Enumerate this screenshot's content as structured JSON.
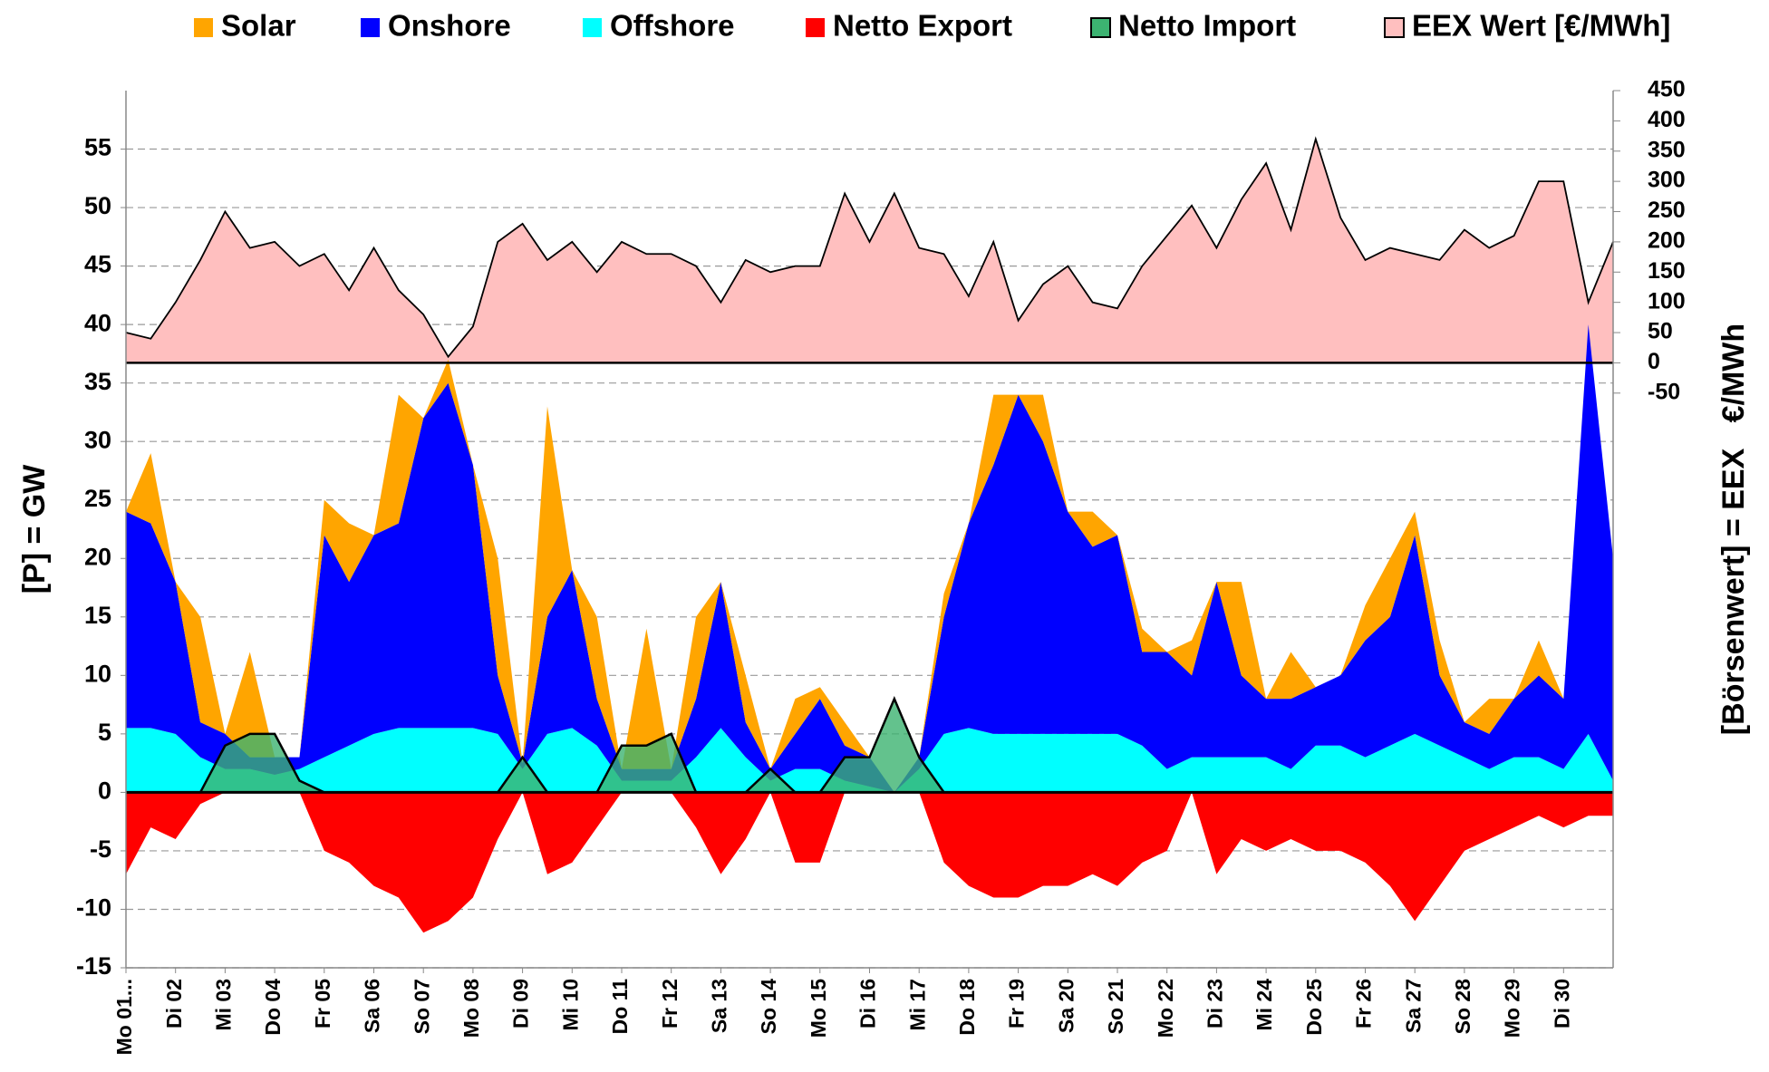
{
  "chart_data": {
    "type": "area",
    "x": [
      0,
      0.5,
      1,
      1.5,
      2,
      2.5,
      3,
      3.5,
      4,
      4.5,
      5,
      5.5,
      6,
      6.5,
      7,
      7.5,
      8,
      8.5,
      9,
      9.5,
      10,
      10.5,
      11,
      11.5,
      12,
      12.5,
      13,
      13.5,
      14,
      14.5,
      15,
      15.5,
      16,
      16.5,
      17,
      17.5,
      18,
      18.5,
      19,
      19.5,
      20,
      20.5,
      21,
      21.5,
      22,
      22.5,
      23,
      23.5,
      24,
      24.5,
      25,
      25.5,
      26,
      26.5,
      27,
      27.5,
      28,
      28.5,
      29,
      29.5,
      30
    ],
    "xlim": [
      0,
      30
    ],
    "xticks": [
      {
        "value": 0,
        "label": "Mo 01..."
      },
      {
        "value": 1,
        "label": "Di 02"
      },
      {
        "value": 2,
        "label": "Mi 03"
      },
      {
        "value": 3,
        "label": "Do 04"
      },
      {
        "value": 4,
        "label": "Fr 05"
      },
      {
        "value": 5,
        "label": "Sa 06"
      },
      {
        "value": 6,
        "label": "So 07"
      },
      {
        "value": 7,
        "label": "Mo 08"
      },
      {
        "value": 8,
        "label": "Di 09"
      },
      {
        "value": 9,
        "label": "Mi 10"
      },
      {
        "value": 10,
        "label": "Do 11"
      },
      {
        "value": 11,
        "label": "Fr 12"
      },
      {
        "value": 12,
        "label": "Sa 13"
      },
      {
        "value": 13,
        "label": "So 14"
      },
      {
        "value": 14,
        "label": "Mo 15"
      },
      {
        "value": 15,
        "label": "Di 16"
      },
      {
        "value": 16,
        "label": "Mi 17"
      },
      {
        "value": 17,
        "label": "Do 18"
      },
      {
        "value": 18,
        "label": "Fr 19"
      },
      {
        "value": 19,
        "label": "Sa 20"
      },
      {
        "value": 20,
        "label": "So 21"
      },
      {
        "value": 21,
        "label": "Mo 22"
      },
      {
        "value": 22,
        "label": "Di 23"
      },
      {
        "value": 23,
        "label": "Mi 24"
      },
      {
        "value": 24,
        "label": "Do 25"
      },
      {
        "value": 25,
        "label": "Fr 26"
      },
      {
        "value": 26,
        "label": "Sa 27"
      },
      {
        "value": 27,
        "label": "So 28"
      },
      {
        "value": 28,
        "label": "Mo 29"
      },
      {
        "value": 29,
        "label": "Di 30"
      }
    ],
    "ylim": [
      -15,
      60
    ],
    "yticks": [
      -15,
      -10,
      -5,
      0,
      5,
      10,
      15,
      20,
      25,
      30,
      35,
      40,
      45,
      50,
      55
    ],
    "y2lim": [
      -1000,
      450
    ],
    "y2ticks": [
      -50,
      0,
      50,
      100,
      150,
      200,
      250,
      300,
      350,
      400,
      450
    ],
    "ylabel": "[P] = GW",
    "y2label": "[Börsenwert] = EEX   €/MWh",
    "negative_tick_color": "#ff0000",
    "grid": true,
    "legend": "top",
    "series": [
      {
        "name": "Solar",
        "color": "#ffa500",
        "stacked": true,
        "values": [
          0,
          6,
          0,
          9,
          0,
          9,
          0,
          0,
          3,
          5,
          0,
          11,
          0,
          2,
          0,
          10,
          0,
          18,
          0,
          7,
          0,
          12,
          0,
          7,
          0,
          4,
          0,
          3,
          1,
          2,
          0,
          0,
          0,
          2,
          0,
          6,
          0,
          4,
          0,
          3,
          0,
          2,
          0,
          3,
          0,
          8,
          0,
          4,
          0,
          0,
          3,
          5,
          2,
          3,
          0,
          3,
          0,
          3,
          0,
          0,
          0
        ]
      },
      {
        "name": "Onshore",
        "color": "#0000ff",
        "stacked": true,
        "values": [
          18.5,
          17.5,
          13,
          3,
          3,
          1,
          1.5,
          1,
          19,
          14,
          17,
          17.5,
          26.5,
          29.5,
          22.5,
          5,
          0.5,
          10,
          13.5,
          4,
          1,
          1,
          1,
          5,
          12.5,
          3,
          1,
          3,
          6,
          3,
          2.5,
          0,
          1,
          10,
          17.5,
          23,
          29,
          25,
          19,
          16,
          17,
          8,
          10,
          7,
          15,
          7,
          5,
          6,
          5,
          6,
          10,
          11,
          17,
          6,
          3,
          3,
          5,
          7,
          6,
          35,
          19
        ]
      },
      {
        "name": "Offshore",
        "color": "#00ffff",
        "stacked": true,
        "values": [
          5.5,
          5.5,
          5,
          3,
          2,
          2,
          1.5,
          2,
          3,
          4,
          5,
          5.5,
          5.5,
          5.5,
          5.5,
          5,
          2,
          5,
          5.5,
          4,
          1,
          1,
          1,
          3,
          5.5,
          3,
          1,
          2,
          2,
          1,
          0.5,
          0,
          2,
          5,
          5.5,
          5,
          5,
          5,
          5,
          5,
          5,
          4,
          2,
          3,
          3,
          3,
          3,
          2,
          4,
          4,
          3,
          4,
          5,
          4,
          3,
          2,
          3,
          3,
          2,
          5,
          1
        ]
      },
      {
        "name": "Netto Export",
        "color": "#ff0000",
        "values": [
          -7,
          -3,
          -4,
          -1,
          0,
          0,
          0,
          0,
          -5,
          -6,
          -8,
          -9,
          -12,
          -11,
          -9,
          -4,
          0,
          -7,
          -6,
          -3,
          0,
          0,
          0,
          -3,
          -7,
          -4,
          0,
          -6,
          -6,
          0,
          0,
          0,
          0,
          -6,
          -8,
          -9,
          -9,
          -8,
          -8,
          -7,
          -8,
          -6,
          -5,
          0,
          -7,
          -4,
          -5,
          -4,
          -5,
          -5,
          -6,
          -8,
          -11,
          -8,
          -5,
          -4,
          -3,
          -2,
          -3,
          -2,
          -2
        ]
      },
      {
        "name": "Netto Import",
        "color": "#3cb371",
        "line_color": "#000000",
        "values": [
          0,
          0,
          0,
          0,
          4,
          5,
          5,
          1,
          0,
          0,
          0,
          0,
          0,
          0,
          0,
          0,
          3,
          0,
          0,
          0,
          4,
          4,
          5,
          0,
          0,
          0,
          2,
          0,
          0,
          3,
          3,
          8,
          3,
          0,
          0,
          0,
          0,
          0,
          0,
          0,
          0,
          0,
          0,
          0,
          0,
          0,
          0,
          0,
          0,
          0,
          0,
          0,
          0,
          0,
          0,
          0,
          0,
          0,
          0,
          0,
          0
        ]
      },
      {
        "name": "EEX Wert [€/MWh]",
        "color": "#ffbfbf",
        "line_color": "#000000",
        "axis": "y2",
        "values": [
          50,
          40,
          100,
          170,
          250,
          190,
          200,
          160,
          180,
          120,
          190,
          120,
          80,
          10,
          60,
          200,
          230,
          170,
          200,
          150,
          200,
          180,
          180,
          160,
          100,
          170,
          150,
          160,
          160,
          280,
          200,
          280,
          190,
          180,
          110,
          200,
          70,
          130,
          160,
          100,
          90,
          160,
          210,
          260,
          190,
          270,
          330,
          220,
          370,
          240,
          170,
          190,
          180,
          170,
          220,
          190,
          210,
          300,
          300,
          100,
          200
        ]
      }
    ]
  }
}
